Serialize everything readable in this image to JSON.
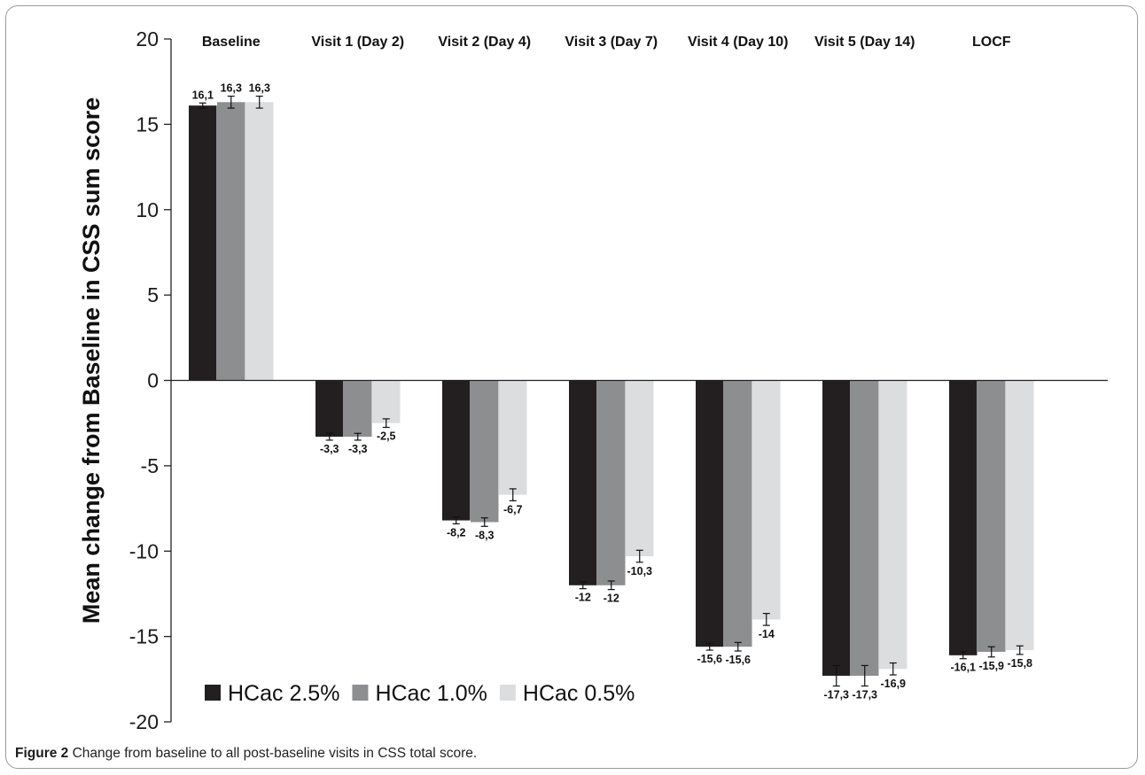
{
  "chart_data": {
    "type": "bar",
    "ylabel": "Mean change from Baseline in CSS sum score",
    "xlabel": "",
    "ylim": [
      -20,
      20
    ],
    "yticks": [
      20,
      15,
      10,
      5,
      0,
      -5,
      -10,
      -15,
      -20
    ],
    "yticklabels": [
      "20",
      "15",
      "10",
      "5",
      "0",
      "-5",
      "-10",
      "-15",
      "-20"
    ],
    "grid": false,
    "legend_position": "bottom-left",
    "categories": [
      "Baseline",
      "Visit 1 (Day 2)",
      "Visit 2 (Day 4)",
      "Visit 3 (Day 7)",
      "Visit 4 (Day 10)",
      "Visit 5 (Day 14)",
      "LOCF"
    ],
    "series": [
      {
        "name": "HCac 2.5%",
        "color": "#231f20",
        "values": [
          16.1,
          -3.3,
          -8.2,
          -12,
          -15.6,
          -17.3,
          -16.1
        ],
        "labels": [
          "16,1",
          "-3,3",
          "-8,2",
          "-12",
          "-15,6",
          "-17,3",
          "-16,1"
        ],
        "errors": [
          0.15,
          0.2,
          0.2,
          0.2,
          0.2,
          0.6,
          0.2
        ]
      },
      {
        "name": "HCac 1.0%",
        "color": "#8d8e90",
        "values": [
          16.3,
          -3.3,
          -8.3,
          -12,
          -15.6,
          -17.3,
          -15.9
        ],
        "labels": [
          "16,3",
          "-3,3",
          "-8,3",
          "-12",
          "-15,6",
          "-17,3",
          "-15,9"
        ],
        "errors": [
          0.35,
          0.2,
          0.25,
          0.25,
          0.25,
          0.6,
          0.3
        ]
      },
      {
        "name": "HCac 0.5%",
        "color": "#dcdddf",
        "values": [
          16.3,
          -2.5,
          -6.7,
          -10.3,
          -14,
          -16.9,
          -15.8
        ],
        "labels": [
          "16,3",
          "-2,5",
          "-6,7",
          "-10,3",
          "-14",
          "-16,9",
          "-15,8"
        ],
        "errors": [
          0.35,
          0.25,
          0.35,
          0.35,
          0.35,
          0.35,
          0.25
        ]
      }
    ]
  },
  "caption": {
    "label": "Figure 2",
    "text": "Change from baseline to all post-baseline visits in CSS total score."
  }
}
